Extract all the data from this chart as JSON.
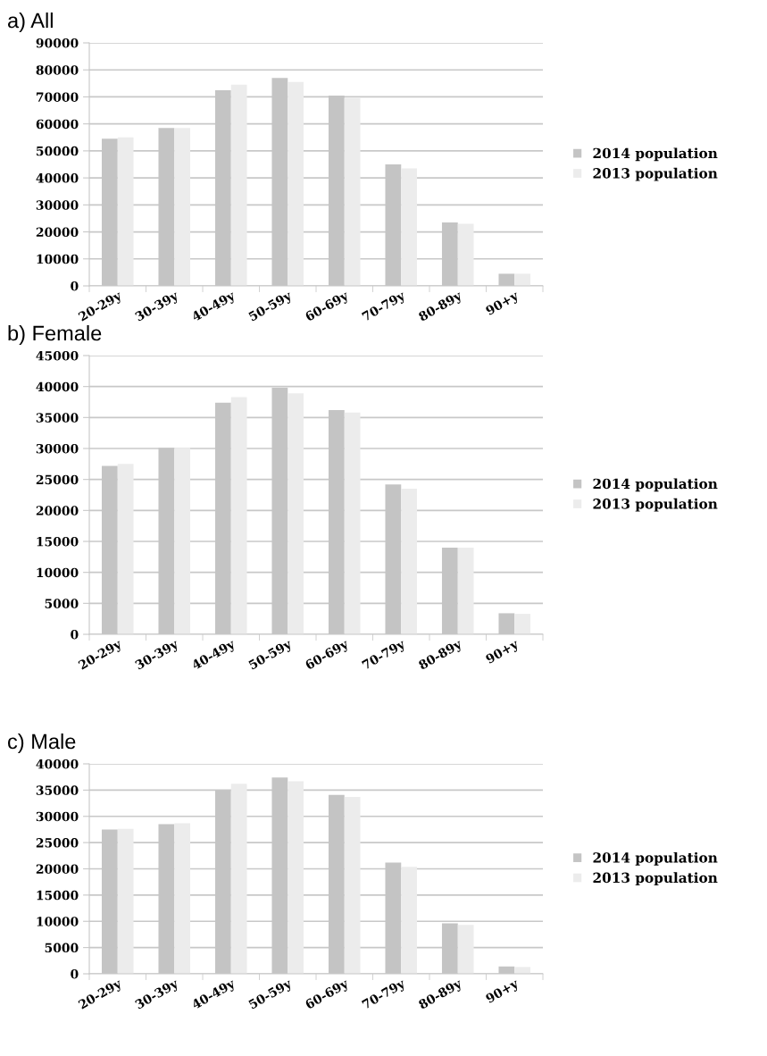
{
  "chart_data": [
    {
      "type": "bar",
      "title": "a) All",
      "categories": [
        "20-29y",
        "30-39y",
        "40-49y",
        "50-59y",
        "60-69y",
        "70-79y",
        "80-89y",
        "90+y"
      ],
      "series": [
        {
          "name": "2014 population",
          "color": "#c4c4c4",
          "values": [
            54500,
            58500,
            72500,
            77000,
            70500,
            45000,
            23500,
            4500
          ]
        },
        {
          "name": "2013 population",
          "color": "#ececec",
          "values": [
            55000,
            58500,
            74500,
            75500,
            69500,
            43500,
            23000,
            4500
          ]
        }
      ],
      "ylim": [
        0,
        90000
      ],
      "yticks": [
        0,
        10000,
        20000,
        30000,
        40000,
        50000,
        60000,
        70000,
        80000,
        90000
      ],
      "grid": "y",
      "legend": "right"
    },
    {
      "type": "bar",
      "title": "b) Female",
      "categories": [
        "20-29y",
        "30-39y",
        "40-49y",
        "50-59y",
        "60-69y",
        "70-79y",
        "80-89y",
        "90+y"
      ],
      "series": [
        {
          "name": "2014 population",
          "color": "#c4c4c4",
          "values": [
            27200,
            30100,
            37400,
            39800,
            36200,
            24200,
            14000,
            3400
          ]
        },
        {
          "name": "2013 population",
          "color": "#ececec",
          "values": [
            27500,
            30100,
            38300,
            38900,
            35800,
            23500,
            14000,
            3300
          ]
        }
      ],
      "ylim": [
        0,
        45000
      ],
      "yticks": [
        0,
        5000,
        10000,
        15000,
        20000,
        25000,
        30000,
        35000,
        40000,
        45000
      ],
      "grid": "y",
      "legend": "right"
    },
    {
      "type": "bar",
      "title": "c) Male",
      "categories": [
        "20-29y",
        "30-39y",
        "40-49y",
        "50-59y",
        "60-69y",
        "70-79y",
        "80-89y",
        "90+y"
      ],
      "series": [
        {
          "name": "2014 population",
          "color": "#c4c4c4",
          "values": [
            27500,
            28500,
            35000,
            37400,
            34100,
            21200,
            9600,
            1400
          ]
        },
        {
          "name": "2013 population",
          "color": "#ececec",
          "values": [
            27600,
            28700,
            36200,
            36700,
            33700,
            20400,
            9300,
            1300
          ]
        }
      ],
      "ylim": [
        0,
        40000
      ],
      "yticks": [
        0,
        5000,
        10000,
        15000,
        20000,
        25000,
        30000,
        35000,
        40000
      ],
      "grid": "y",
      "legend": "right"
    }
  ]
}
